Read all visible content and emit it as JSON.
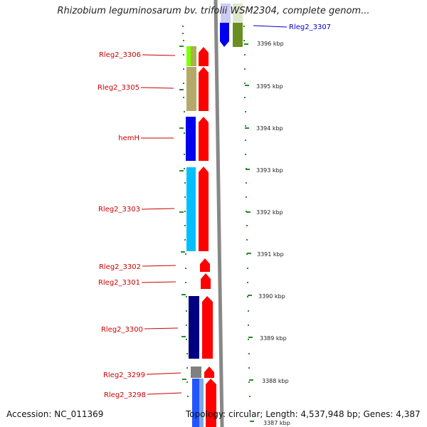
{
  "title": "Rhizobium leguminosarum bv. trifolii WSM2304, complete genom...",
  "accession": "Accession: NC_011369",
  "summary": "Topology: circular; Length: 4,537,948 bp; Genes: 4,387",
  "colors": {
    "gene_label": "#cc0000",
    "highlight_label": "#0000cc",
    "backbone": "#888888",
    "cds_arrow": "#ff0000",
    "tick": "#2a8a2a"
  },
  "scale_labels": [
    "3396 kbp",
    "3395 kbp",
    "3394 kbp",
    "3393 kbp",
    "3392 kbp",
    "3391 kbp",
    "3390 kbp",
    "3389 kbp",
    "3388 kbp",
    "3387 kbp"
  ],
  "genes": [
    {
      "label": "Rleg2_3307",
      "color": "#0000cc",
      "strand": "reverse",
      "highlight": true
    },
    {
      "label": "Rleg2_3306",
      "color": "#cc0000",
      "strand": "forward"
    },
    {
      "label": "Rleg2_3305",
      "color": "#cc0000",
      "strand": "forward"
    },
    {
      "label": "hemH",
      "color": "#cc0000",
      "strand": "forward"
    },
    {
      "label": "Rleg2_3303",
      "color": "#cc0000",
      "strand": "forward"
    },
    {
      "label": "Rleg2_3302",
      "color": "#cc0000",
      "strand": "forward"
    },
    {
      "label": "Rleg2_3301",
      "color": "#cc0000",
      "strand": "forward"
    },
    {
      "label": "Rleg2_3300",
      "color": "#cc0000",
      "strand": "forward"
    },
    {
      "label": "Rleg2_3299",
      "color": "#cc0000",
      "strand": "forward"
    },
    {
      "label": "Rleg2_3298",
      "color": "#cc0000",
      "strand": "forward"
    }
  ]
}
